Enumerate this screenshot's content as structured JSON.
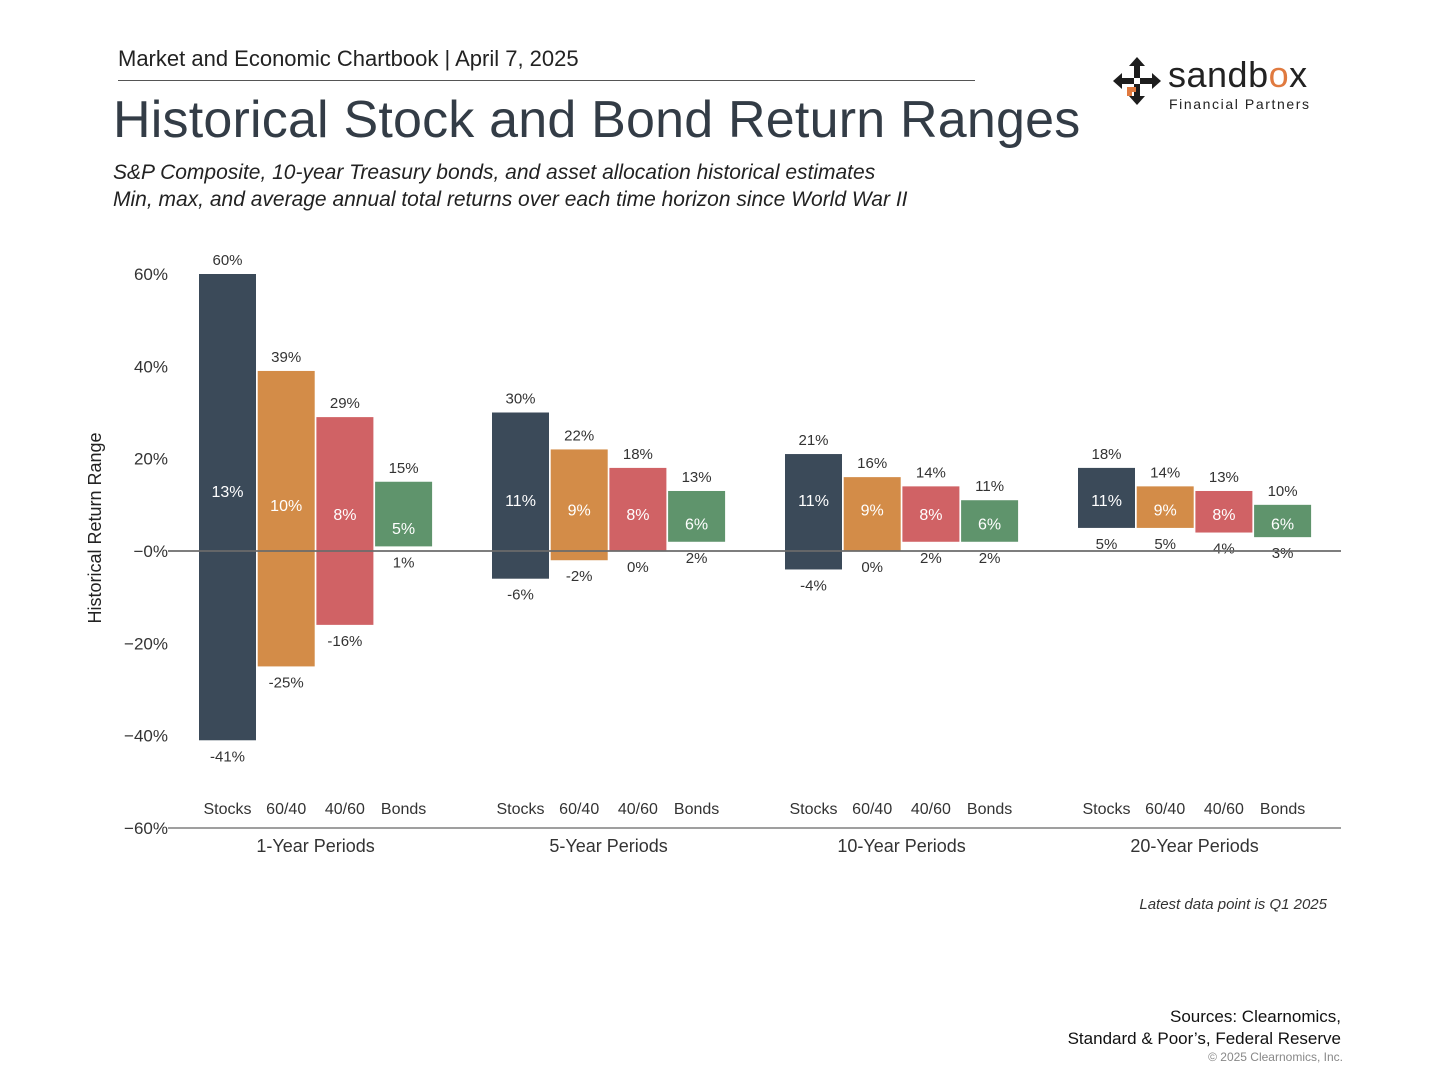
{
  "header": {
    "chartbook": "Market and Economic Chartbook | April 7, 2025",
    "title": "Historical Stock and Bond Return Ranges",
    "subtitle1": "S&P Composite, 10-year Treasury bonds, and asset allocation historical estimates",
    "subtitle2": "Min, max, and average annual total returns over each time horizon since World War II"
  },
  "logo": {
    "word_main": "sandb",
    "word_accent": "o",
    "word_end": "x",
    "sub": "Financial Partners"
  },
  "footer": {
    "note": "Latest data point is Q1 2025",
    "sources_line1": "Sources: Clearnomics,",
    "sources_line2": "Standard & Poor’s, Federal Reserve",
    "copyright": "© 2025 Clearnomics, Inc."
  },
  "colors": {
    "Stocks": "#3b4a59",
    "60/40": "#d38c48",
    "40/60": "#d06265",
    "Bonds": "#5f946c",
    "zero_line": "#6b6b6b"
  },
  "chart_data": {
    "type": "bar",
    "subtype": "floating range bar",
    "ylabel": "Historical Return Range",
    "ylim": [
      -60,
      60
    ],
    "y_ticks": [
      "60%",
      "40%",
      "20%",
      "−0%",
      "−20%",
      "−40%",
      "−60%"
    ],
    "groups": [
      "1-Year Periods",
      "5-Year Periods",
      "10-Year Periods",
      "20-Year Periods"
    ],
    "series": [
      {
        "name": "Stocks",
        "min": [
          -41,
          -6,
          -4,
          5
        ],
        "max": [
          60,
          30,
          21,
          18
        ],
        "avg": [
          13,
          11,
          11,
          11
        ],
        "min_labels": [
          "-41%",
          "-6%",
          "-4%",
          "5%"
        ],
        "max_labels": [
          "60%",
          "30%",
          "21%",
          "18%"
        ],
        "avg_labels": [
          "13%",
          "11%",
          "11%",
          "11%"
        ]
      },
      {
        "name": "60/40",
        "min": [
          -25,
          -2,
          0,
          5
        ],
        "max": [
          39,
          22,
          16,
          14
        ],
        "avg": [
          10,
          9,
          9,
          9
        ],
        "min_labels": [
          "-25%",
          "-2%",
          "0%",
          "5%"
        ],
        "max_labels": [
          "39%",
          "22%",
          "16%",
          "14%"
        ],
        "avg_labels": [
          "10%",
          "9%",
          "9%",
          "9%"
        ]
      },
      {
        "name": "40/60",
        "min": [
          -16,
          0,
          2,
          4
        ],
        "max": [
          29,
          18,
          14,
          13
        ],
        "avg": [
          8,
          8,
          8,
          8
        ],
        "min_labels": [
          "-16%",
          "0%",
          "2%",
          "4%"
        ],
        "max_labels": [
          "29%",
          "18%",
          "14%",
          "13%"
        ],
        "avg_labels": [
          "8%",
          "8%",
          "8%",
          "8%"
        ]
      },
      {
        "name": "Bonds",
        "min": [
          1,
          2,
          2,
          3
        ],
        "max": [
          15,
          13,
          11,
          10
        ],
        "avg": [
          5,
          6,
          6,
          6
        ],
        "min_labels": [
          "1%",
          "2%",
          "2%",
          "3%"
        ],
        "max_labels": [
          "15%",
          "13%",
          "11%",
          "10%"
        ],
        "avg_labels": [
          "5%",
          "6%",
          "6%",
          "6%"
        ]
      }
    ]
  }
}
